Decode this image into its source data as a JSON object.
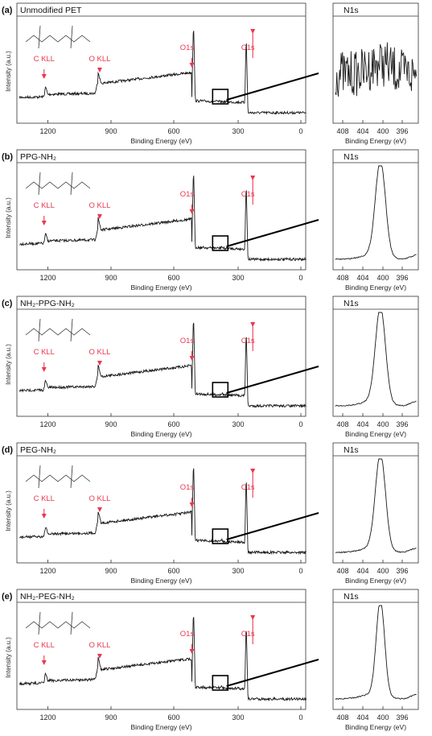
{
  "figure": {
    "panel_letters": [
      "(a)",
      "(b)",
      "(c)",
      "(d)",
      "(e)"
    ],
    "colors": {
      "line": "#1a1a1a",
      "annotation": "#e8384f",
      "axis": "#333333"
    }
  },
  "chart_data": [
    {
      "panel": "(a)",
      "title": "Unmodified PET",
      "type": "line",
      "xlabel": "Binding Energy (eV)",
      "ylabel": "Intensity (a.u.)",
      "xlim": [
        1350,
        0
      ],
      "xticks": [
        "1200",
        "900",
        "600",
        "300",
        "0"
      ],
      "annotations": [
        "C KLL",
        "O KLL",
        "O1s",
        "C1s"
      ],
      "peaks_ev": [
        1223,
        978,
        532,
        285
      ],
      "inset": {
        "title": "N1s",
        "xlabel": "Binding Energy (eV)",
        "xticks": [
          "408",
          "404",
          "400",
          "396"
        ],
        "xlim": [
          410,
          392
        ],
        "shape": "noise",
        "peak_ev": 400
      }
    },
    {
      "panel": "(b)",
      "title": "PPG-NH₂",
      "type": "line",
      "xlabel": "Binding Energy (eV)",
      "ylabel": "Intensity (a.u.)",
      "xlim": [
        1350,
        0
      ],
      "xticks": [
        "1200",
        "900",
        "600",
        "300",
        "0"
      ],
      "annotations": [
        "C KLL",
        "O KLL",
        "O1s",
        "C1s"
      ],
      "peaks_ev": [
        1223,
        978,
        532,
        285
      ],
      "inset": {
        "title": "N1s",
        "xlabel": "Binding Energy (eV)",
        "xticks": [
          "408",
          "404",
          "400",
          "396"
        ],
        "xlim": [
          410,
          392
        ],
        "shape": "peak",
        "peak_ev": 400
      }
    },
    {
      "panel": "(c)",
      "title": "NH₂-PPG-NH₂",
      "type": "line",
      "xlabel": "Binding Energy (eV)",
      "ylabel": "Intensity (a.u.)",
      "xlim": [
        1350,
        0
      ],
      "xticks": [
        "1200",
        "900",
        "600",
        "300",
        "0"
      ],
      "annotations": [
        "C KLL",
        "O KLL",
        "O1s",
        "C1s"
      ],
      "peaks_ev": [
        1223,
        978,
        532,
        285
      ],
      "inset": {
        "title": "N1s",
        "xlabel": "Binding Energy (eV)",
        "xticks": [
          "408",
          "404",
          "400",
          "396"
        ],
        "xlim": [
          410,
          392
        ],
        "shape": "peak",
        "peak_ev": 400
      }
    },
    {
      "panel": "(d)",
      "title": "PEG-NH₂",
      "type": "line",
      "xlabel": "Binding Energy (eV)",
      "ylabel": "Intensity (a.u.)",
      "xlim": [
        1350,
        0
      ],
      "xticks": [
        "1200",
        "900",
        "600",
        "300",
        "0"
      ],
      "annotations": [
        "C KLL",
        "O KLL",
        "O1s",
        "C1s"
      ],
      "peaks_ev": [
        1223,
        978,
        532,
        285
      ],
      "inset": {
        "title": "N1s",
        "xlabel": "Binding Energy (eV)",
        "xticks": [
          "408",
          "404",
          "400",
          "396"
        ],
        "xlim": [
          410,
          392
        ],
        "shape": "peak",
        "peak_ev": 400
      }
    },
    {
      "panel": "(e)",
      "title": "NH₂-PEG-NH₂",
      "type": "line",
      "xlabel": "Binding Energy (eV)",
      "ylabel": "Intensity (a.u.)",
      "xlim": [
        1350,
        0
      ],
      "xticks": [
        "1200",
        "900",
        "600",
        "300",
        "0"
      ],
      "annotations": [
        "C KLL",
        "O KLL",
        "O1s",
        "C1s"
      ],
      "peaks_ev": [
        1223,
        978,
        532,
        285
      ],
      "inset": {
        "title": "N1s",
        "xlabel": "Binding Energy (eV)",
        "xticks": [
          "408",
          "404",
          "400",
          "396"
        ],
        "xlim": [
          410,
          392
        ],
        "shape": "peak",
        "peak_ev": 400
      }
    }
  ]
}
